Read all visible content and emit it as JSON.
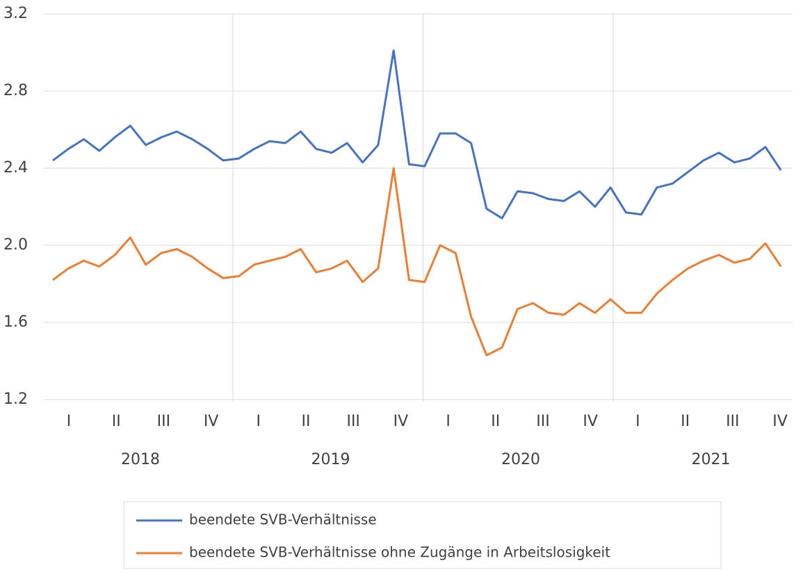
{
  "chart_data": {
    "type": "line",
    "categories": [
      null,
      null,
      null,
      null,
      null,
      null,
      null,
      null,
      null,
      null,
      null,
      null,
      null,
      null,
      null,
      null,
      null,
      null,
      null,
      null,
      null,
      null,
      null,
      null,
      null,
      null,
      null,
      null,
      null,
      null,
      null,
      null,
      null,
      null,
      null,
      null,
      null,
      null,
      null,
      null,
      null,
      null,
      null,
      null,
      null,
      null,
      null,
      null
    ],
    "quarter_labels": [
      "I",
      "II",
      "III",
      "IV",
      "I",
      "II",
      "III",
      "IV",
      "I",
      "II",
      "III",
      "IV",
      "I",
      "II",
      "III",
      "IV"
    ],
    "year_labels": [
      "2018",
      "2019",
      "2020",
      "2021"
    ],
    "series": [
      {
        "name": "beendete SVB-Verhältnisse",
        "color": "#4472c4",
        "values": [
          2.44,
          2.5,
          2.55,
          2.49,
          2.56,
          2.62,
          2.52,
          2.56,
          2.59,
          2.55,
          2.5,
          2.44,
          2.45,
          2.5,
          2.54,
          2.53,
          2.59,
          2.5,
          2.48,
          2.53,
          2.43,
          2.52,
          3.01,
          2.42,
          2.41,
          2.58,
          2.58,
          2.53,
          2.19,
          2.14,
          2.28,
          2.27,
          2.24,
          2.23,
          2.28,
          2.2,
          2.3,
          2.17,
          2.16,
          2.3,
          2.32,
          2.38,
          2.44,
          2.48,
          2.43,
          2.45,
          2.51,
          2.39
        ]
      },
      {
        "name": "beendete SVB-Verhältnisse ohne Zugänge in Arbeitslosigkeit",
        "color": "#ed7d31",
        "values": [
          1.82,
          1.88,
          1.92,
          1.89,
          1.95,
          2.04,
          1.9,
          1.96,
          1.98,
          1.94,
          1.88,
          1.83,
          1.84,
          1.9,
          1.92,
          1.94,
          1.98,
          1.86,
          1.88,
          1.92,
          1.81,
          1.88,
          2.4,
          1.82,
          1.81,
          2.0,
          1.96,
          1.63,
          1.43,
          1.47,
          1.67,
          1.7,
          1.65,
          1.64,
          1.7,
          1.65,
          1.72,
          1.65,
          1.65,
          1.75,
          1.82,
          1.88,
          1.92,
          1.95,
          1.91,
          1.93,
          2.01,
          1.89
        ]
      }
    ],
    "ylim": [
      1.2,
      3.2
    ],
    "yticks": [
      1.2,
      1.6,
      {
        "value": 2,
        "label": "2.0"
      },
      2.4,
      2.8,
      3.2
    ],
    "grid": true,
    "legend": "bottom"
  }
}
